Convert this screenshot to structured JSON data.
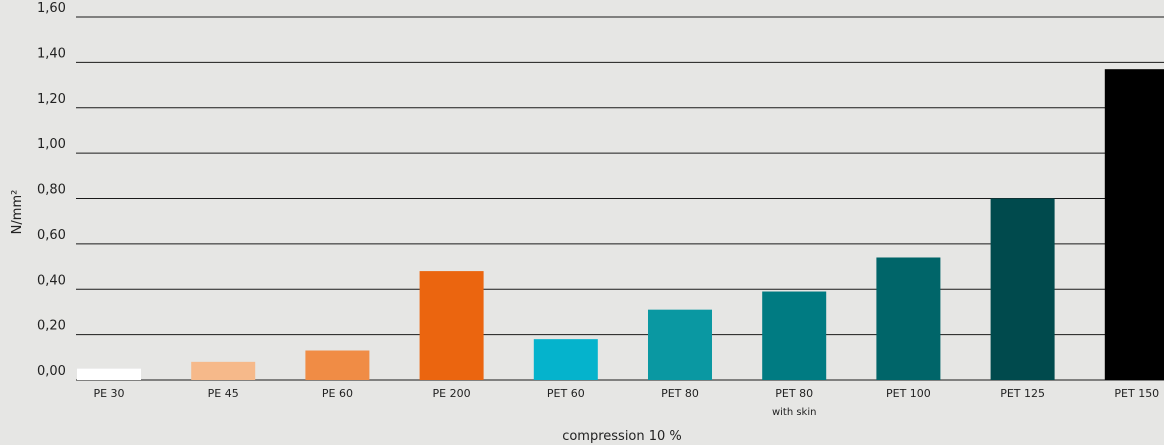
{
  "chart_data": {
    "type": "bar",
    "categories": [
      "PE 30",
      "PE 45",
      "PE 60",
      "PE 200",
      "PET 60",
      "PET 80",
      "PET 80",
      "PET 100",
      "PET 125",
      "PET 150"
    ],
    "category_sublabels": [
      "",
      "",
      "",
      "",
      "",
      "",
      "with skin",
      "",
      "",
      ""
    ],
    "values": [
      0.05,
      0.08,
      0.13,
      0.48,
      0.18,
      0.31,
      0.39,
      0.54,
      0.8,
      1.37
    ],
    "colors": [
      "#ffffff",
      "#f6b98a",
      "#f08c45",
      "#eb650f",
      "#05b3cc",
      "#0a98a2",
      "#007b82",
      "#006569",
      "#004a4d",
      "#000000"
    ],
    "xlabel": "compression 10 %",
    "ylabel": "N/mm²",
    "ylim": [
      0,
      1.6
    ],
    "yticks": [
      "0,00",
      "0,20",
      "0,40",
      "0,60",
      "0,80",
      "1,00",
      "1,20",
      "1,40",
      "1,60"
    ],
    "grid": true,
    "legend": "none"
  }
}
